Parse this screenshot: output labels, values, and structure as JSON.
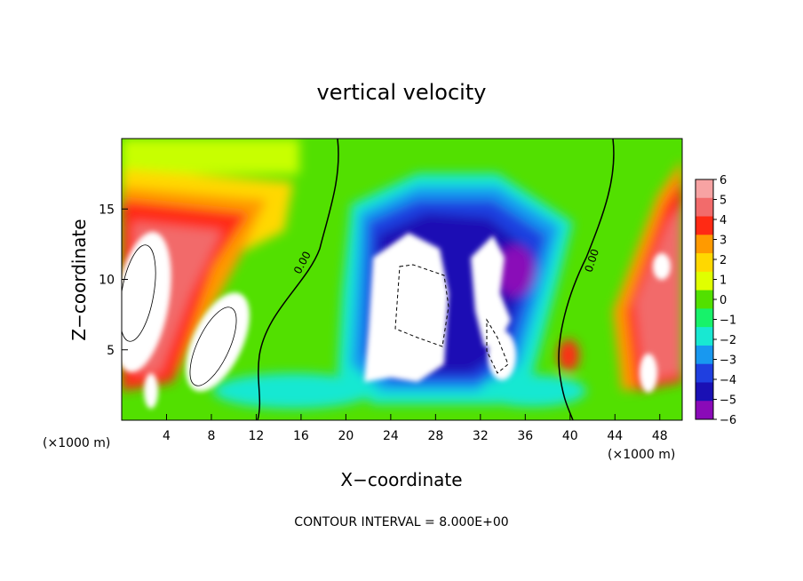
{
  "chart_data": {
    "type": "heatmap",
    "title": "vertical velocity",
    "xlabel": "X−coordinate",
    "ylabel": "Z−coordinate",
    "x_unit_left": "(×1000 m)",
    "x_unit_right": "(×1000 m)",
    "xlim": [
      0,
      50
    ],
    "ylim": [
      0,
      20
    ],
    "x_ticks": [
      "4",
      "8",
      "12",
      "16",
      "20",
      "24",
      "28",
      "32",
      "36",
      "40",
      "44",
      "48"
    ],
    "y_ticks": [
      "5",
      "10",
      "15"
    ],
    "colorbar": {
      "labels": [
        "6",
        "5",
        "4",
        "3",
        "2",
        "1",
        "0",
        "−1",
        "−2",
        "−3",
        "−4",
        "−5",
        "−6"
      ],
      "colors": [
        "#f7a3a3",
        "#f26b6b",
        "#ff2a14",
        "#ff9a00",
        "#ffd800",
        "#e0ff00",
        "#52e000",
        "#17f26a",
        "#18e8d2",
        "#1898f0",
        "#1f3fe0",
        "#1a10b4",
        "#8a0ab8"
      ]
    },
    "contour_labels": [
      "0.00",
      "0.00"
    ],
    "contour_interval_note": "CONTOUR INTERVAL = 8.000E+00"
  }
}
